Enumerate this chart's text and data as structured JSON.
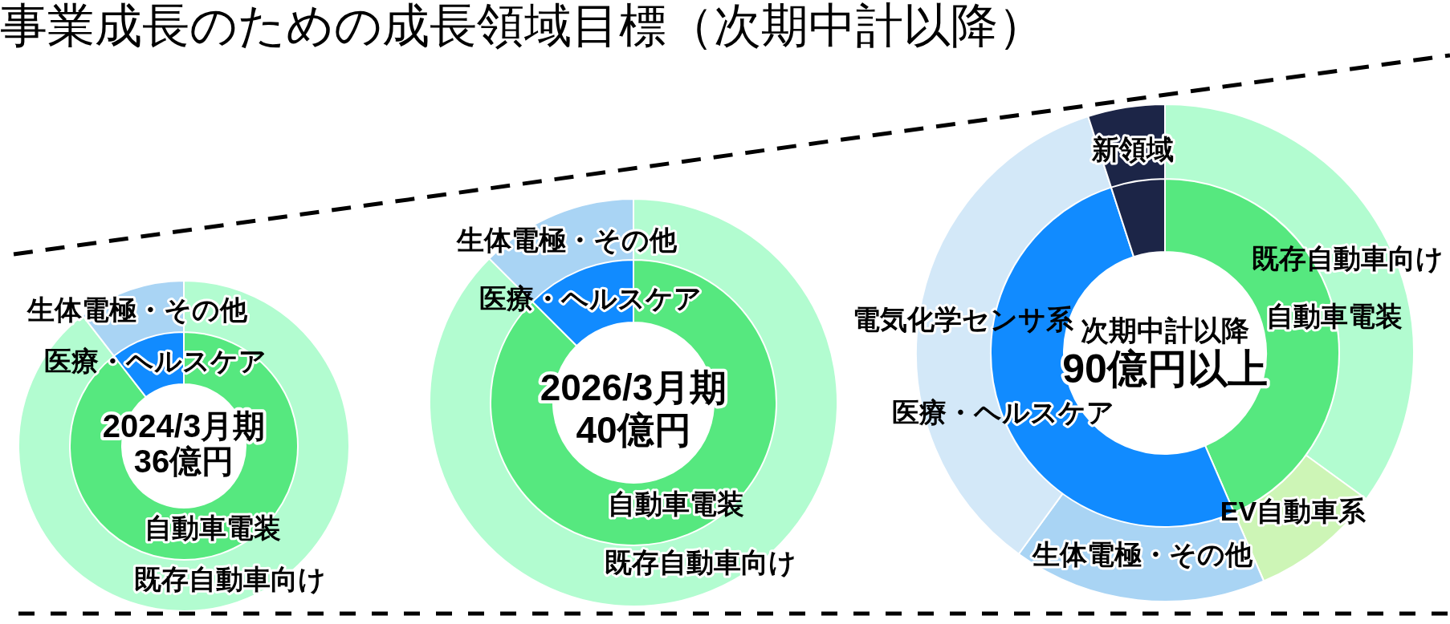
{
  "chart_data": [
    {
      "type": "donut",
      "title": "事業成長のための成長領域目標（次期中計以降）",
      "annotations": [
        "2024/3月期",
        "36億円"
      ],
      "categories": [
        "自動車電装",
        "医療・ヘルスケア"
      ],
      "values": [
        89.5,
        10.5
      ],
      "colors": [
        "#56e87f",
        "#118bff"
      ]
    },
    {
      "type": "donut",
      "categories": [
        "既存自動車向け",
        "生体電極・その他"
      ],
      "values": [
        89.5,
        10.5
      ],
      "colors": [
        "#b2fcd0",
        "#a9d4f4"
      ]
    },
    {
      "type": "donut",
      "annotations": [
        "2026/3月期",
        "40億円"
      ],
      "categories": [
        "自動車電装",
        "医療・ヘルスケア"
      ],
      "values": [
        87.5,
        12.5
      ],
      "colors": [
        "#56e87f",
        "#118bff"
      ]
    },
    {
      "type": "donut",
      "categories": [
        "既存自動車向け",
        "生体電極・その他"
      ],
      "values": [
        87.5,
        12.5
      ],
      "colors": [
        "#b2fcd0",
        "#a9d4f4"
      ]
    },
    {
      "type": "donut",
      "annotations": [
        "次期中計以降",
        "90億円以上"
      ],
      "categories": [
        "自動車電装",
        "医療・ヘルスケア",
        null
      ],
      "values": [
        43.5,
        51.5,
        5
      ],
      "colors": [
        "#56e87f",
        "#118bff",
        "#1c2547"
      ]
    },
    {
      "type": "donut",
      "categories": [
        "既存自動車向け",
        "EV自動車系",
        "生体電極・その他",
        "電気化学センサ系",
        "新領域"
      ],
      "values": [
        35,
        8.5,
        16.5,
        35,
        5
      ],
      "colors": [
        "#b2fcd0",
        "#cdf5b6",
        "#a9d4f4",
        "#d3e8f8",
        "#1c2547"
      ]
    }
  ]
}
